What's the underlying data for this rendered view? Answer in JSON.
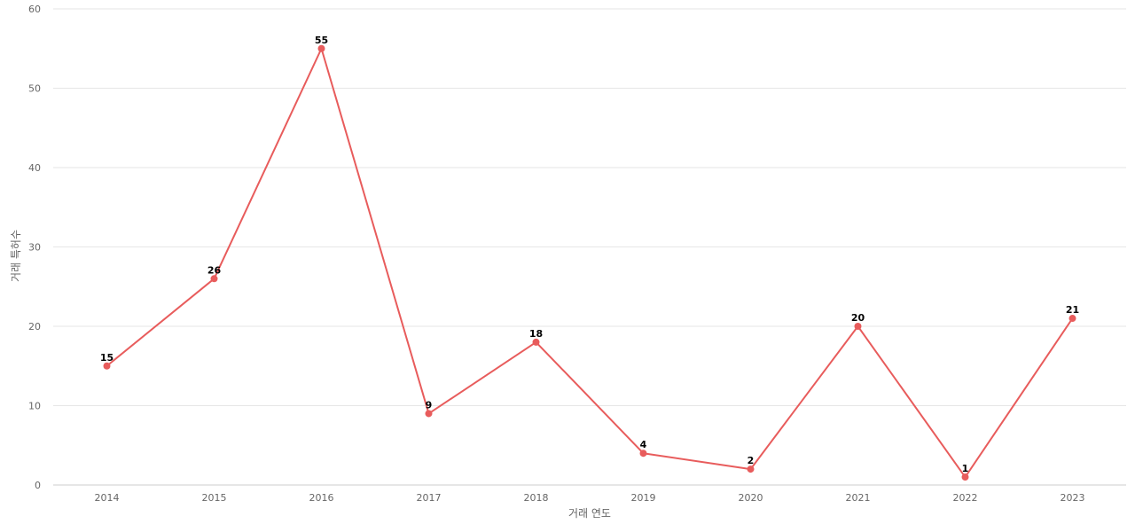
{
  "chart_data": {
    "type": "line",
    "x": [
      "2014",
      "2015",
      "2016",
      "2017",
      "2018",
      "2019",
      "2020",
      "2021",
      "2022",
      "2023"
    ],
    "series": [
      {
        "values": [
          15,
          26,
          55,
          9,
          18,
          4,
          2,
          20,
          1,
          21
        ],
        "color": "#e85c5c"
      }
    ],
    "xlabel": "거래 연도",
    "ylabel": "거래 특허수",
    "ylim": [
      0,
      60
    ],
    "yticks": [
      0,
      10,
      20,
      30,
      40,
      50,
      60
    ],
    "grid": true,
    "data_labels": true
  }
}
